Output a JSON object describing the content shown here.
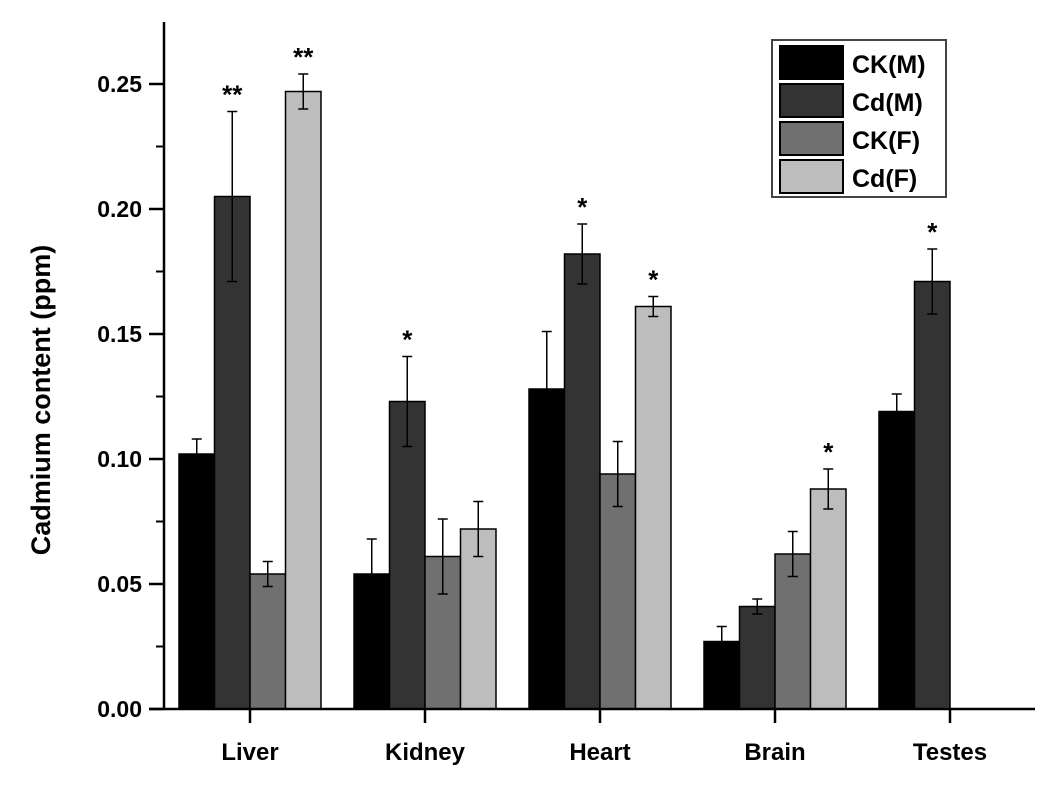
{
  "chart_data": {
    "type": "bar",
    "title": "",
    "xlabel": "",
    "ylabel": "Cadmium content (ppm)",
    "ylim": [
      0,
      0.275
    ],
    "yticks": [
      "0.00",
      "0.05",
      "0.10",
      "0.15",
      "0.20",
      "0.25"
    ],
    "grid": false,
    "legend_position": "top-right",
    "categories": [
      "Liver",
      "Kidney",
      "Heart",
      "Brain",
      "Testes"
    ],
    "series": [
      {
        "name": "CK(M)",
        "color": "#000000",
        "values": [
          0.102,
          0.054,
          0.128,
          0.027,
          0.119
        ],
        "errors": [
          0.006,
          0.014,
          0.023,
          0.006,
          0.007
        ],
        "annotations": [
          "",
          "",
          "",
          "",
          ""
        ]
      },
      {
        "name": "Cd(M)",
        "color": "#333333",
        "values": [
          0.205,
          0.123,
          0.182,
          0.041,
          0.171
        ],
        "errors": [
          0.034,
          0.018,
          0.012,
          0.003,
          0.013
        ],
        "annotations": [
          "**",
          "*",
          "*",
          "",
          "*"
        ]
      },
      {
        "name": "CK(F)",
        "color": "#707070",
        "values": [
          0.054,
          0.061,
          0.094,
          0.062,
          null
        ],
        "errors": [
          0.005,
          0.015,
          0.013,
          0.009,
          null
        ],
        "annotations": [
          "",
          "",
          "",
          "",
          ""
        ]
      },
      {
        "name": "Cd(F)",
        "color": "#bdbdbd",
        "values": [
          0.247,
          0.072,
          0.161,
          0.088,
          null
        ],
        "errors": [
          0.007,
          0.011,
          0.004,
          0.008,
          null
        ],
        "annotations": [
          "**",
          "",
          "*",
          "*",
          ""
        ]
      }
    ]
  }
}
